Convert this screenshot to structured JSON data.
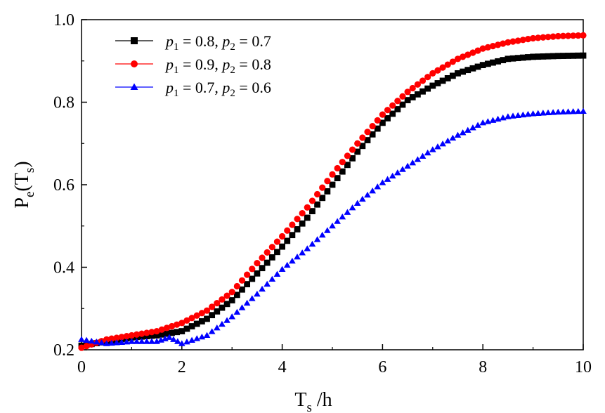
{
  "chart_data": {
    "type": "scatter",
    "xlabel": "T",
    "xlabel_sub": "s",
    "xlabel_suffix": " /h",
    "ylabel": "P",
    "ylabel_sub": "e",
    "ylabel_arg": "(T",
    "ylabel_arg_sub": "s",
    "ylabel_close": ")",
    "xlim": [
      0,
      10
    ],
    "ylim": [
      0.2,
      1.0
    ],
    "xticks": [
      "0",
      "2",
      "4",
      "6",
      "8",
      "10"
    ],
    "yticks": [
      "0.2",
      "0.4",
      "0.6",
      "0.8",
      "1.0"
    ],
    "grid": false,
    "legend_position": "top-left",
    "series": [
      {
        "name": "p1 = 0.8, p2 = 0.7",
        "legend": {
          "p1": "0.8",
          "p2": "0.7"
        },
        "marker": "square",
        "color": "#000000",
        "points": [
          [
            0.0,
            0.21
          ],
          [
            0.5,
            0.22
          ],
          [
            1.0,
            0.23
          ],
          [
            1.5,
            0.235
          ],
          [
            2.0,
            0.245
          ],
          [
            2.5,
            0.275
          ],
          [
            3.0,
            0.32
          ],
          [
            3.5,
            0.385
          ],
          [
            4.0,
            0.45
          ],
          [
            4.5,
            0.52
          ],
          [
            5.0,
            0.6
          ],
          [
            5.5,
            0.68
          ],
          [
            6.0,
            0.75
          ],
          [
            6.5,
            0.805
          ],
          [
            7.0,
            0.84
          ],
          [
            7.5,
            0.87
          ],
          [
            8.0,
            0.89
          ],
          [
            8.5,
            0.905
          ],
          [
            9.0,
            0.91
          ],
          [
            9.5,
            0.912
          ],
          [
            10.0,
            0.913
          ]
        ]
      },
      {
        "name": "p1 = 0.9, p2 = 0.8",
        "legend": {
          "p1": "0.9",
          "p2": "0.8"
        },
        "marker": "circle",
        "color": "#ff0000",
        "points": [
          [
            0.0,
            0.205
          ],
          [
            0.5,
            0.225
          ],
          [
            1.0,
            0.235
          ],
          [
            1.5,
            0.245
          ],
          [
            2.0,
            0.265
          ],
          [
            2.5,
            0.295
          ],
          [
            3.0,
            0.34
          ],
          [
            3.5,
            0.41
          ],
          [
            4.0,
            0.475
          ],
          [
            4.5,
            0.545
          ],
          [
            5.0,
            0.625
          ],
          [
            5.5,
            0.7
          ],
          [
            6.0,
            0.77
          ],
          [
            6.5,
            0.825
          ],
          [
            7.0,
            0.87
          ],
          [
            7.5,
            0.905
          ],
          [
            8.0,
            0.93
          ],
          [
            8.5,
            0.945
          ],
          [
            9.0,
            0.955
          ],
          [
            9.5,
            0.96
          ],
          [
            10.0,
            0.962
          ]
        ]
      },
      {
        "name": "p1 = 0.7, p2 = 0.6",
        "legend": {
          "p1": "0.7",
          "p2": "0.6"
        },
        "marker": "triangle",
        "color": "#0000ff",
        "points": [
          [
            0.0,
            0.225
          ],
          [
            0.5,
            0.215
          ],
          [
            1.0,
            0.22
          ],
          [
            1.5,
            0.22
          ],
          [
            1.75,
            0.23
          ],
          [
            2.0,
            0.215
          ],
          [
            2.5,
            0.235
          ],
          [
            3.0,
            0.28
          ],
          [
            3.5,
            0.335
          ],
          [
            4.0,
            0.395
          ],
          [
            4.5,
            0.445
          ],
          [
            5.0,
            0.5
          ],
          [
            5.5,
            0.555
          ],
          [
            6.0,
            0.605
          ],
          [
            6.5,
            0.645
          ],
          [
            7.0,
            0.685
          ],
          [
            7.5,
            0.72
          ],
          [
            8.0,
            0.75
          ],
          [
            8.5,
            0.765
          ],
          [
            9.0,
            0.772
          ],
          [
            9.5,
            0.776
          ],
          [
            10.0,
            0.778
          ]
        ]
      }
    ]
  }
}
